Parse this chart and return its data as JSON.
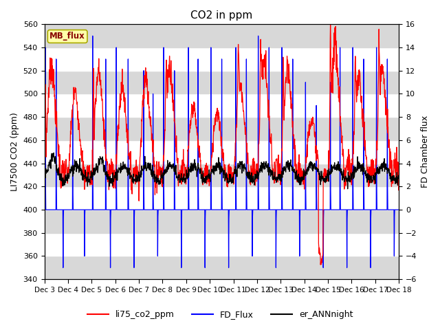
{
  "title": "CO2 in ppm",
  "ylabel_left": "LI7500 CO2 (ppm)",
  "ylabel_right": "FD Chamber flux",
  "ylim_left": [
    340,
    560
  ],
  "ylim_right": [
    -6,
    16
  ],
  "xlim": [
    0,
    15
  ],
  "xtick_labels": [
    "Dec 3",
    "Dec 4",
    "Dec 5",
    "Dec 6",
    "Dec 7",
    "Dec 8",
    "Dec 9",
    "Dec 10",
    "Dec 11",
    "Dec 12",
    "Dec 13",
    "Dec 14",
    "Dec 15",
    "Dec 16",
    "Dec 17",
    "Dec 18"
  ],
  "mb_flux_label": "MB_flux",
  "legend_entries": [
    "li75_co2_ppm",
    "FD_Flux",
    "er_ANNnight"
  ],
  "line_colors": [
    "red",
    "blue",
    "black"
  ],
  "mb_flux_bg": "#ffffaa",
  "mb_flux_fg": "#880000",
  "plot_bg_color": "#e0e0e0",
  "stripe_color": "#cccccc",
  "figsize": [
    6.4,
    4.8
  ],
  "dpi": 100
}
